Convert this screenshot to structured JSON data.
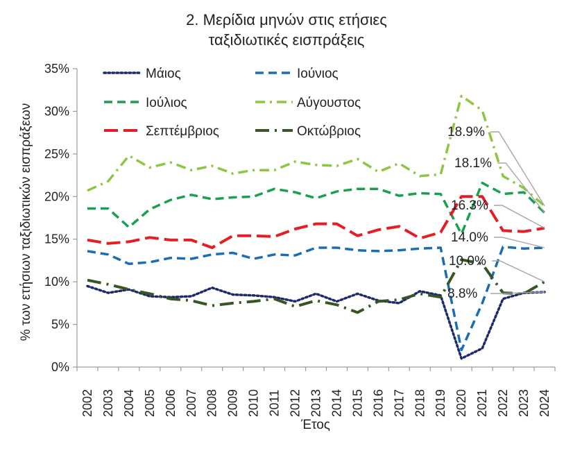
{
  "chart_data": {
    "type": "line",
    "title_lines": [
      "2. Μερίδια μηνών στις ετήσιες",
      "ταξιδιωτικές εισπράξεις"
    ],
    "xlabel": "Έτος",
    "ylabel": "% των ετήσιων ταξιδιωτικών εισπράξεων",
    "ylim": [
      0,
      35
    ],
    "yticks": [
      "0%",
      "5%",
      "10%",
      "15%",
      "20%",
      "25%",
      "30%",
      "35%"
    ],
    "ytick_values": [
      0,
      5,
      10,
      15,
      20,
      25,
      30,
      35
    ],
    "categories": [
      "2002",
      "2003",
      "2004",
      "2005",
      "2006",
      "2007",
      "2008",
      "2009",
      "2010",
      "2011",
      "2012",
      "2013",
      "2014",
      "2015",
      "2016",
      "2017",
      "2018",
      "2019",
      "2020",
      "2021",
      "2022",
      "2023",
      "2024"
    ],
    "grid": false,
    "legend_position": "top-left",
    "series": [
      {
        "name": "Μάιος",
        "color": "#1b2a6b",
        "dash": "dotted",
        "values": [
          9.5,
          8.7,
          9.1,
          8.3,
          8.2,
          8.3,
          9.3,
          8.5,
          8.4,
          8.2,
          7.7,
          8.6,
          7.7,
          8.6,
          7.8,
          7.5,
          8.9,
          8.4,
          1.0,
          2.2,
          8.0,
          8.7,
          8.8
        ]
      },
      {
        "name": "Ιούνιος",
        "color": "#1a6db3",
        "dash": "dashed",
        "values": [
          13.6,
          13.2,
          12.1,
          12.3,
          12.8,
          12.7,
          13.2,
          13.4,
          12.7,
          13.2,
          13.1,
          14.0,
          14.0,
          13.7,
          13.6,
          13.7,
          13.9,
          14.0,
          2.0,
          7.5,
          14.1,
          13.9,
          14.0
        ]
      },
      {
        "name": "Ιούλιος",
        "color": "#1aa04c",
        "dash": "dashed",
        "values": [
          18.6,
          18.6,
          16.4,
          18.5,
          19.6,
          20.2,
          19.7,
          19.9,
          20.0,
          20.9,
          20.5,
          19.8,
          20.6,
          20.9,
          20.9,
          20.1,
          20.4,
          20.3,
          15.6,
          21.6,
          20.3,
          20.5,
          18.1
        ]
      },
      {
        "name": "Αύγουστος",
        "color": "#8dc63f",
        "dash": "dashdot",
        "values": [
          20.7,
          21.8,
          24.8,
          23.4,
          24.0,
          23.1,
          23.6,
          22.7,
          23.1,
          23.1,
          24.1,
          23.7,
          23.6,
          24.4,
          22.9,
          23.9,
          22.4,
          22.6,
          31.8,
          30.1,
          22.4,
          21.0,
          18.9
        ]
      },
      {
        "name": "Σεπτέμβριος",
        "color": "#e31e24",
        "dash": "longdash",
        "values": [
          14.9,
          14.5,
          14.7,
          15.2,
          14.9,
          14.9,
          14.0,
          15.4,
          15.4,
          15.3,
          16.2,
          16.8,
          16.8,
          15.4,
          16.1,
          16.5,
          15.1,
          15.8,
          20.0,
          20.0,
          16.0,
          15.9,
          16.3
        ]
      },
      {
        "name": "Οκτώβριος",
        "color": "#375623",
        "dash": "dashdotlong",
        "values": [
          10.2,
          9.7,
          9.1,
          8.6,
          8.0,
          7.8,
          7.2,
          7.5,
          7.7,
          8.0,
          7.1,
          7.8,
          7.3,
          6.4,
          7.7,
          7.9,
          8.6,
          8.2,
          12.6,
          12.1,
          8.7,
          8.6,
          10.0
        ]
      }
    ],
    "annotations": [
      {
        "label": "18.9%",
        "series": "Αύγουστος"
      },
      {
        "label": "18.1%",
        "series": "Ιούλιος"
      },
      {
        "label": "16.3%",
        "series": "Σεπτέμβριος"
      },
      {
        "label": "14.0%",
        "series": "Ιούνιος"
      },
      {
        "label": "10.0%",
        "series": "Οκτώβριος"
      },
      {
        "label": "8.8%",
        "series": "Μάιος"
      }
    ]
  }
}
